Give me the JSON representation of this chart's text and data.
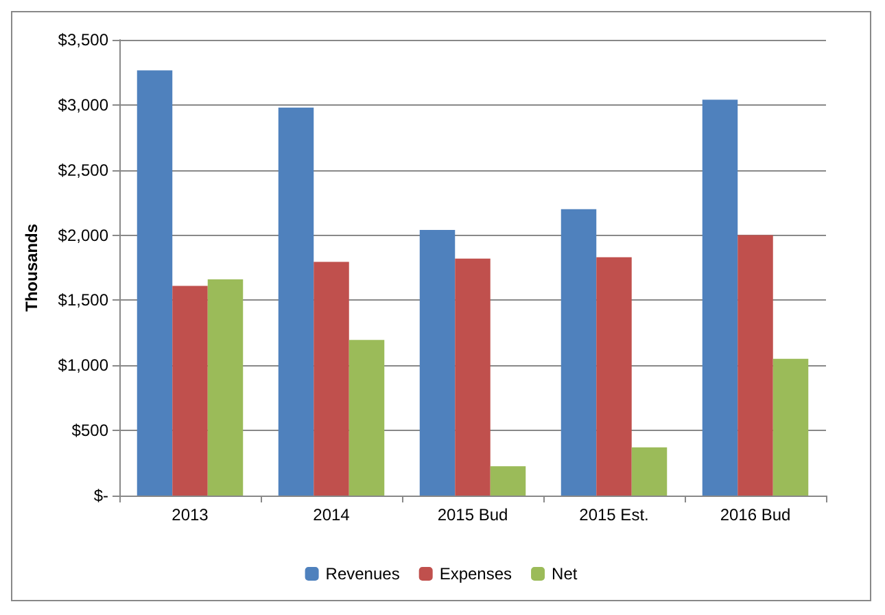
{
  "chart_data": {
    "type": "bar",
    "ylabel": "Thousands",
    "categories": [
      "2013",
      "2014",
      "2015 Bud",
      "2015 Est.",
      "2016 Bud"
    ],
    "series": [
      {
        "name": "Revenues",
        "color": "#4f81bd",
        "values": [
          3265,
          2980,
          2040,
          2200,
          3040
        ]
      },
      {
        "name": "Expenses",
        "color": "#c0504d",
        "values": [
          1610,
          1795,
          1820,
          1830,
          2000
        ]
      },
      {
        "name": "Net",
        "color": "#9bbb59",
        "values": [
          1660,
          1195,
          225,
          370,
          1050
        ]
      }
    ],
    "ylim": [
      0,
      3500
    ],
    "yticks": [
      {
        "value": 0,
        "label": "$-"
      },
      {
        "value": 500,
        "label": "$500"
      },
      {
        "value": 1000,
        "label": "$1,000"
      },
      {
        "value": 1500,
        "label": "$1,500"
      },
      {
        "value": 2000,
        "label": "$2,000"
      },
      {
        "value": 2500,
        "label": "$2,500"
      },
      {
        "value": 3000,
        "label": "$3,000"
      },
      {
        "value": 3500,
        "label": "$3,500"
      }
    ],
    "grid": "y",
    "legend": "bottom"
  }
}
